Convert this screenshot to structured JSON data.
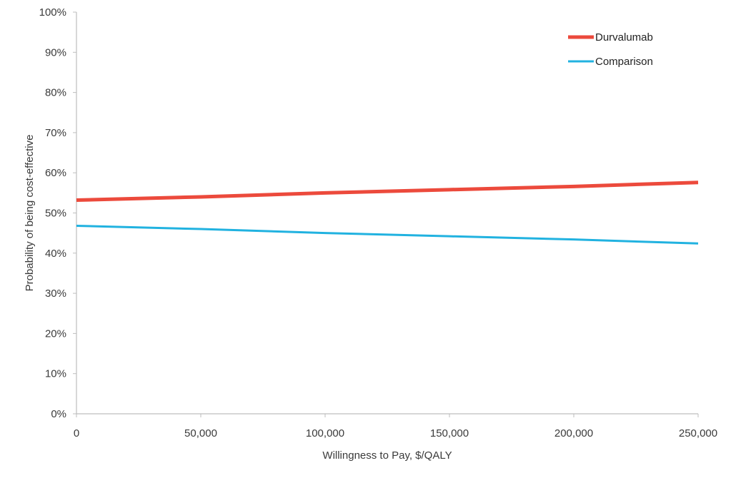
{
  "chart_data": {
    "type": "line",
    "title": "",
    "xlabel": "Willingness to Pay, $/QALY",
    "ylabel": "Probability of being cost-effective",
    "xlim": [
      0,
      250000
    ],
    "ylim": [
      0,
      100
    ],
    "x_ticks": [
      0,
      50000,
      100000,
      150000,
      200000,
      250000
    ],
    "x_tick_labels": [
      "0",
      "50,000",
      "100,000",
      "150,000",
      "200,000",
      "250,000"
    ],
    "y_ticks": [
      0,
      10,
      20,
      30,
      40,
      50,
      60,
      70,
      80,
      90,
      100
    ],
    "y_tick_labels": [
      "0%",
      "10%",
      "20%",
      "30%",
      "40%",
      "50%",
      "60%",
      "70%",
      "80%",
      "90%",
      "100%"
    ],
    "grid": false,
    "legend_position": "top-right",
    "x": [
      0,
      50000,
      100000,
      150000,
      200000,
      250000
    ],
    "series": [
      {
        "name": "Durvalumab",
        "color": "#ec4a3c",
        "values": [
          53.2,
          54.0,
          55.0,
          55.8,
          56.6,
          57.6
        ]
      },
      {
        "name": "Comparison",
        "color": "#21b2e0",
        "values": [
          46.8,
          46.0,
          45.0,
          44.2,
          43.4,
          42.4
        ]
      }
    ]
  }
}
